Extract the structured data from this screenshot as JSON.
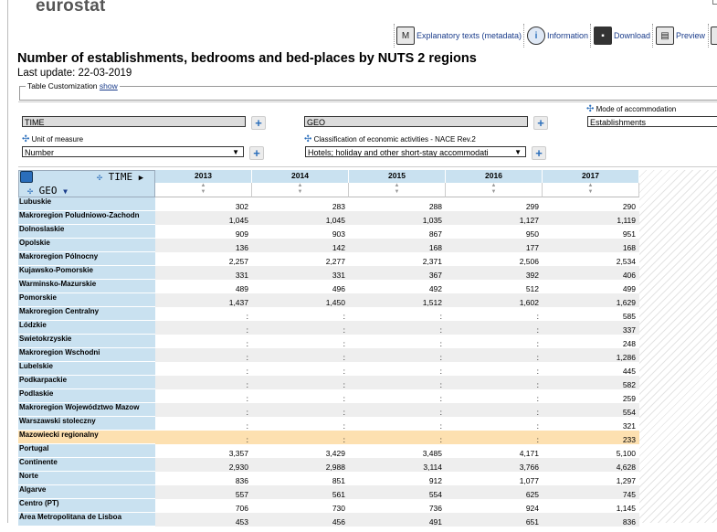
{
  "header": {
    "logo_text": "eurostat",
    "toolbar": [
      {
        "label": "Explanatory texts (metadata)",
        "icon": "metadata-icon"
      },
      {
        "label": "Information",
        "icon": "info-icon"
      },
      {
        "label": "Download",
        "icon": "save-icon"
      },
      {
        "label": "Preview",
        "icon": "print-icon"
      }
    ]
  },
  "page": {
    "title": "Number of establishments, bedrooms and bed-places by NUTS 2 regions",
    "last_update": "Last update: 22-03-2019"
  },
  "customization": {
    "legend": "Table Customization",
    "link": "show"
  },
  "dimensions": {
    "time_field": "TIME",
    "geo_field": "GEO",
    "accommodation_label": "Mode of accommodation",
    "accommodation_value": "Establishments",
    "unit_label": "Unit of measure",
    "unit_value": "Number",
    "nace_label": "Classification of economic activities - NACE Rev.2",
    "nace_value": "Hotels; holiday and other short-stay accommodati"
  },
  "table": {
    "time_header": "TIME",
    "geo_header": "GEO",
    "years": [
      "2013",
      "2014",
      "2015",
      "2016",
      "2017"
    ],
    "rows": [
      {
        "label": "Lubuskie",
        "values": [
          "302",
          "283",
          "288",
          "299",
          "290"
        ]
      },
      {
        "label": "Makroregion Poludniowo-Zachodn",
        "values": [
          "1,045",
          "1,045",
          "1,035",
          "1,127",
          "1,119"
        ]
      },
      {
        "label": "Dolnoslaskie",
        "values": [
          "909",
          "903",
          "867",
          "950",
          "951"
        ]
      },
      {
        "label": "Opolskie",
        "values": [
          "136",
          "142",
          "168",
          "177",
          "168"
        ]
      },
      {
        "label": "Makroregion Pólnocny",
        "values": [
          "2,257",
          "2,277",
          "2,371",
          "2,506",
          "2,534"
        ]
      },
      {
        "label": "Kujawsko-Pomorskie",
        "values": [
          "331",
          "331",
          "367",
          "392",
          "406"
        ]
      },
      {
        "label": "Warminsko-Mazurskie",
        "values": [
          "489",
          "496",
          "492",
          "512",
          "499"
        ]
      },
      {
        "label": "Pomorskie",
        "values": [
          "1,437",
          "1,450",
          "1,512",
          "1,602",
          "1,629"
        ]
      },
      {
        "label": "Makroregion Centralny",
        "values": [
          ":",
          ":",
          ":",
          ":",
          "585"
        ]
      },
      {
        "label": "Lódzkie",
        "values": [
          ":",
          ":",
          ":",
          ":",
          "337"
        ]
      },
      {
        "label": "Swietokrzyskie",
        "values": [
          ":",
          ":",
          ":",
          ":",
          "248"
        ]
      },
      {
        "label": "Makroregion Wschodni",
        "values": [
          ":",
          ":",
          ":",
          ":",
          "1,286"
        ]
      },
      {
        "label": "Lubelskie",
        "values": [
          ":",
          ":",
          ":",
          ":",
          "445"
        ]
      },
      {
        "label": "Podkarpackie",
        "values": [
          ":",
          ":",
          ":",
          ":",
          "582"
        ]
      },
      {
        "label": "Podlaskie",
        "values": [
          ":",
          ":",
          ":",
          ":",
          "259"
        ]
      },
      {
        "label": "Makroregion Województwo Mazow",
        "values": [
          ":",
          ":",
          ":",
          ":",
          "554"
        ]
      },
      {
        "label": "Warszawski stoleczny",
        "values": [
          ":",
          ":",
          ":",
          ":",
          "321"
        ]
      },
      {
        "label": "Mazowiecki regionalny",
        "values": [
          ":",
          ":",
          ":",
          ":",
          "233"
        ],
        "highlight": true
      },
      {
        "label": "Portugal",
        "values": [
          "3,357",
          "3,429",
          "3,485",
          "4,171",
          "5,100"
        ]
      },
      {
        "label": "Continente",
        "values": [
          "2,930",
          "2,988",
          "3,114",
          "3,766",
          "4,628"
        ]
      },
      {
        "label": "Norte",
        "values": [
          "836",
          "851",
          "912",
          "1,077",
          "1,297"
        ]
      },
      {
        "label": "Algarve",
        "values": [
          "557",
          "561",
          "554",
          "625",
          "745"
        ]
      },
      {
        "label": "Centro (PT)",
        "values": [
          "706",
          "730",
          "736",
          "924",
          "1,145"
        ]
      },
      {
        "label": "Área Metropolitana de Lisboa",
        "values": [
          "453",
          "456",
          "491",
          "651",
          "836"
        ]
      }
    ]
  }
}
